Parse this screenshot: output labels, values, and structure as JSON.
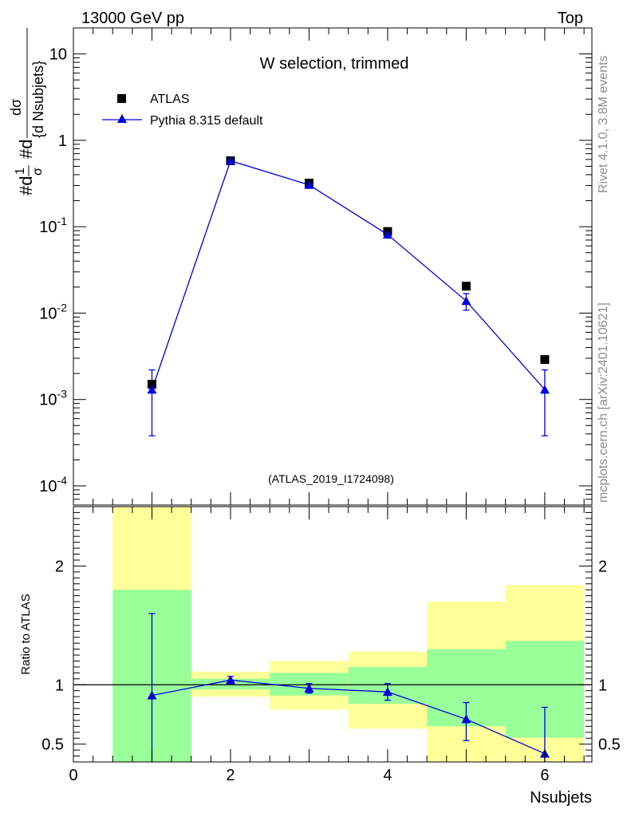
{
  "header": {
    "left": "13000 GeV pp",
    "right": "Top"
  },
  "side_labels": {
    "rivet": "Rivet 4.1.0,  3.8M events",
    "source": "mcplots.cern.ch [arXiv:2401.10621]"
  },
  "colors": {
    "data": "#000000",
    "mc": "#0000e0",
    "band_inner": "#99ff99",
    "band_outer": "#ffff99",
    "watermark": "#a0a0a0"
  },
  "chart_data": [
    {
      "type": "scatter",
      "panel": "main",
      "title": "W selection, trimmed",
      "watermark": "(ATLAS_2019_I1724098)",
      "ylabel": "#d1/σ #d dσ/{d Nsubjets}",
      "yscale": "log",
      "xlim": [
        0,
        6.6
      ],
      "ylim": [
        6e-05,
        20
      ],
      "ytick_labels": [
        "10",
        "1",
        "10^-1",
        "10^-2",
        "10^-3",
        "10^-4"
      ],
      "legend_position": "top-left",
      "series": [
        {
          "name": "ATLAS",
          "marker": "square",
          "x": [
            1,
            2,
            3,
            4,
            5,
            6
          ],
          "y": [
            0.0015,
            0.58,
            0.32,
            0.088,
            0.0205,
            0.0029
          ]
        },
        {
          "name": "Pythia 8.315 default",
          "marker": "triangle",
          "x": [
            1,
            2,
            3,
            4,
            5,
            6
          ],
          "y": [
            0.0013,
            0.58,
            0.305,
            0.081,
            0.0138,
            0.0013
          ],
          "err_low": [
            0.00038,
            0.56,
            0.295,
            0.077,
            0.0108,
            0.00038
          ],
          "err_high": [
            0.0022,
            0.6,
            0.315,
            0.085,
            0.0168,
            0.0022
          ]
        }
      ]
    },
    {
      "type": "scatter",
      "panel": "ratio",
      "xlabel": "Nsubjets",
      "ylabel": "Ratio to ATLAS",
      "xlim": [
        0,
        6.6
      ],
      "ylim": [
        0.35,
        2.5
      ],
      "xtick_labels": [
        "0",
        "2",
        "4",
        "6"
      ],
      "ytick_labels": [
        "0.5",
        "1",
        "2"
      ],
      "bands": {
        "bin_edges": [
          0.5,
          1.5,
          2.5,
          3.5,
          4.5,
          5.5,
          6.5
        ],
        "inner_low": [
          0.35,
          0.96,
          0.91,
          0.84,
          0.65,
          0.555
        ],
        "inner_high": [
          1.8,
          1.05,
          1.1,
          1.15,
          1.3,
          1.37
        ],
        "outer_low": [
          0.35,
          0.9,
          0.79,
          0.63,
          0.35,
          0.35
        ],
        "outer_high": [
          2.5,
          1.11,
          1.2,
          1.28,
          1.7,
          1.84
        ]
      },
      "series": [
        {
          "name": "Pythia 8.315 default / ATLAS",
          "x": [
            1,
            2,
            3,
            4,
            5,
            6
          ],
          "y": [
            0.91,
            1.04,
            0.97,
            0.94,
            0.71,
            0.42
          ],
          "err_low": [
            0.35,
            1.01,
            0.93,
            0.87,
            0.53,
            0.35
          ],
          "err_high": [
            1.6,
            1.07,
            1.01,
            1.01,
            0.85,
            0.81
          ]
        }
      ]
    }
  ]
}
